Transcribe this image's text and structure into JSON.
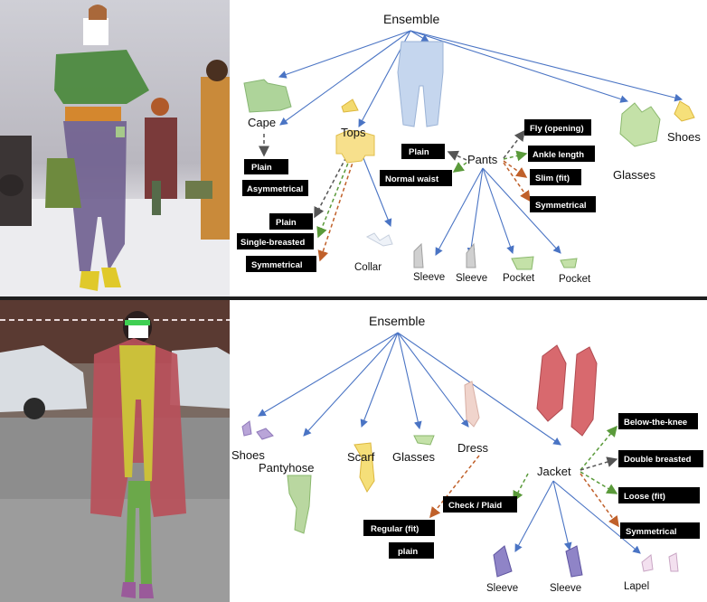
{
  "colors": {
    "tree_edge": "#4a74c4",
    "attr_edge_green": "#5a9a3a",
    "attr_edge_orange": "#c0602a",
    "attr_edge_dark": "#555555",
    "tag_bg": "#000000",
    "tag_text": "#ffffff",
    "divider": "#1e1e1e"
  },
  "top": {
    "root": "Ensemble",
    "categories": {
      "cape": "Cape",
      "tops": "Tops",
      "pants": "Pants",
      "glasses": "Glasses",
      "shoes": "Shoes",
      "collar": "Collar",
      "sleeve_1": "Sleeve",
      "sleeve_2": "Sleeve",
      "pocket_1": "Pocket",
      "pocket_2": "Pocket"
    },
    "attributes": {
      "cape_plain": "Plain",
      "cape_asym": "Asymmetrical",
      "tops_plain": "Plain",
      "tops_single": "Single-breasted",
      "tops_sym": "Symmetrical",
      "pants_plain": "Plain",
      "pants_normal": "Normal waist",
      "pants_fly": "Fly (opening)",
      "pants_ankle": "Ankle length",
      "pants_slim": "Slim (fit)",
      "pants_sym": "Symmetrical"
    },
    "segment_icons": [
      "cape-shape-icon",
      "tops-shape-icon",
      "pants-shape-icon",
      "glasses-shape-icon",
      "shoes-shape-icon",
      "collar-shape-icon",
      "sleeve-shape-icon",
      "pocket-shape-icon"
    ]
  },
  "bottom": {
    "root": "Ensemble",
    "categories": {
      "shoes": "Shoes",
      "pantyhose": "Pantyhose",
      "scarf": "Scarf",
      "glasses": "Glasses",
      "dress": "Dress",
      "jacket": "Jacket",
      "sleeve_1": "Sleeve",
      "sleeve_2": "Sleeve",
      "lapel": "Lapel"
    },
    "attributes": {
      "dress_regular": "Regular (fit)",
      "dress_plain": "plain",
      "jacket_check": "Check / Plaid",
      "jacket_below": "Below-the-knee",
      "jacket_double": "Double breasted",
      "jacket_loose": "Loose (fit)",
      "jacket_sym": "Symmetrical"
    },
    "segment_icons": [
      "shoes-shape-icon",
      "pantyhose-shape-icon",
      "scarf-shape-icon",
      "glasses-shape-icon",
      "dress-shape-icon",
      "jacket-shape-icon",
      "sleeve-shape-icon",
      "lapel-shape-icon"
    ]
  }
}
